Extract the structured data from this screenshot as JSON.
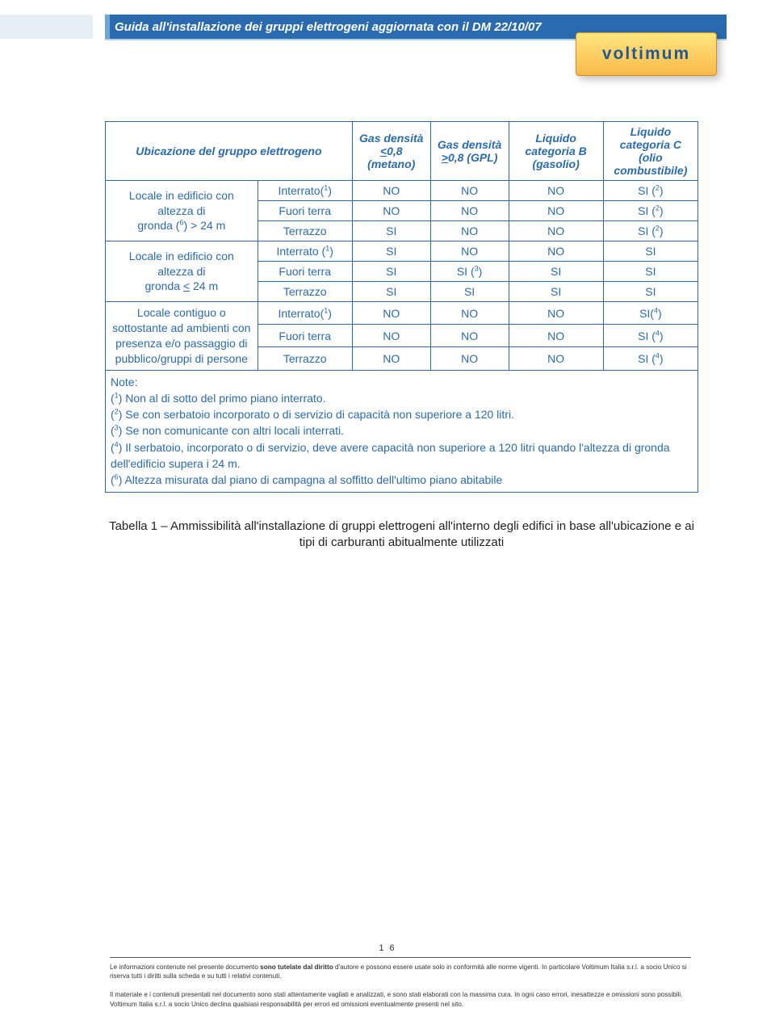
{
  "colors": {
    "blue": "#2a6bb0",
    "lightblue": "#b0cde6",
    "logo_grad_top": "#ffe680",
    "logo_grad_bottom": "#f9b94a",
    "logo_text": "#245990",
    "logo_dot": "#c43a1a"
  },
  "header": {
    "title": "Guida all'installazione dei gruppi elettrogeni aggiornata con il DM 22/10/07"
  },
  "logo": {
    "text": "voltimum"
  },
  "table": {
    "headers": {
      "loc": "Ubicazione del gruppo elettrogeno",
      "c1": "Gas densità <0,8 (metano)",
      "c2": "Gas densità >0,8 (GPL)",
      "c3": "Liquido categoria B (gasolio)",
      "c4": "Liquido categoria C (olio combustibile)"
    },
    "groups": [
      {
        "loc_html": "Locale in edificio con altezza di<br>gronda (<sup>6</sup>) &gt; 24 m",
        "rows": [
          {
            "type_html": "Interrato(<sup>1</sup>)",
            "v": [
              "NO",
              "NO",
              "NO",
              "SI (<sup>2</sup>)"
            ]
          },
          {
            "type_html": "Fuori terra",
            "v": [
              "NO",
              "NO",
              "NO",
              "SI (<sup>2</sup>)"
            ]
          },
          {
            "type_html": "Terrazzo",
            "v": [
              "SI",
              "NO",
              "NO",
              "SI (<sup>2</sup>)"
            ]
          }
        ]
      },
      {
        "loc_html": "Locale in edificio con altezza di<br>gronda <u>&lt;</u> 24 m",
        "rows": [
          {
            "type_html": "Interrato (<sup>1</sup>)",
            "v": [
              "SI",
              "NO",
              "NO",
              "SI"
            ]
          },
          {
            "type_html": "Fuori terra",
            "v": [
              "SI",
              "SI (<sup>3</sup>)",
              "SI",
              "SI"
            ]
          },
          {
            "type_html": "Terrazzo",
            "v": [
              "SI",
              "SI",
              "SI",
              "SI"
            ]
          }
        ]
      },
      {
        "loc_html": "Locale contiguo o sottostante ad ambienti con  presenza e/o passaggio  di pubblico/gruppi di persone",
        "rows": [
          {
            "type_html": "Interrato(<sup>1</sup>)",
            "v": [
              "NO",
              "NO",
              "NO",
              "SI(<sup>4</sup>)"
            ]
          },
          {
            "type_html": "Fuori terra",
            "v": [
              "NO",
              "NO",
              "NO",
              "SI (<sup>4</sup>)"
            ]
          },
          {
            "type_html": "Terrazzo",
            "v": [
              "NO",
              "NO",
              "NO",
              "SI (<sup>4</sup>)"
            ]
          }
        ]
      }
    ],
    "notes": {
      "head": "Note:",
      "items": [
        "(<sup>1</sup>) Non al di sotto del primo piano interrato.",
        "(<sup>2</sup>) Se con serbatoio incorporato o di servizio di capacità non superiore a 120 litri.",
        "(<sup>3</sup>) Se non comunicante con altri locali interrati.",
        "(<sup>4</sup>) Il serbatoio, incorporato o di servizio, deve avere capacità non superiore a 120 litri quando l'altezza di gronda dell'edificio supera i  24 m.",
        "(<sup>6</sup>) Altezza misurata dal piano di campagna al soffitto dell'ultimo piano abitabile"
      ]
    }
  },
  "caption": "Tabella 1 – Ammissibilità all'installazione di gruppi elettrogeni all'interno degli edifici in base all'ubicazione e ai  tipi di carburanti abitualmente utilizzati",
  "page_number": "1 6",
  "footer": {
    "p1_a": "Le informazioni contenute nel presente documento ",
    "p1_b": "sono tutelate dal diritto",
    "p1_c": " d'autore e possono essere usate solo in conformità alle norme vigenti. In particolare Voltimum Italia s.r.l. a socio Unico si riserva tutti i diritti sulla scheda e su tutti i relativi contenuti.",
    "p2": "Il materiale e i contenuti presentati nel documento sono stati attentamente vagliati e analizzati, e sono stati elaborati con la massima cura. In ogni caso errori, inesattezze e omissioni sono possibili. Voltimum Italia s.r.l. a socio Unico declina qualsiasi responsabilità per errori ed omissioni eventualmente presenti nel sito."
  }
}
